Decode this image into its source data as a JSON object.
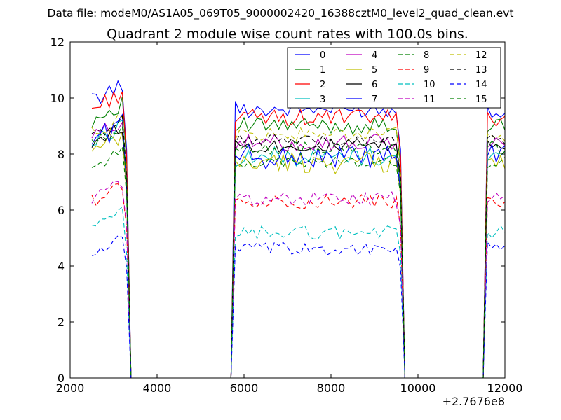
{
  "chart_data": {
    "type": "line",
    "suptitle": "Data file: modeM0/AS1A05_069T05_9000002420_16388cztM0_level2_quad_clean.evt",
    "title": "Quadrant 2 module wise count rates with 100.0s bins.",
    "xlabel": "",
    "ylabel": "",
    "x_offset_label": "+2.7676e8",
    "xlim": [
      2000,
      12000
    ],
    "ylim": [
      0,
      12
    ],
    "xticks": [
      "2000",
      "4000",
      "6000",
      "8000",
      "10000",
      "12000"
    ],
    "yticks": [
      "0",
      "2",
      "4",
      "6",
      "8",
      "10",
      "12"
    ],
    "legend_position": "top-right",
    "segments": [
      {
        "x_start": 2500,
        "x_end": 3200,
        "drop_to": 3400
      },
      {
        "x_start": 5800,
        "x_end": 9500,
        "drop_to": 9700
      },
      {
        "x_start": 11600,
        "x_end": 12000,
        "drop_to": null
      }
    ],
    "series": [
      {
        "name": "0",
        "color": "#0000ff",
        "dash": "solid",
        "level": 9.6,
        "amp": 0.3,
        "burst": 10.5
      },
      {
        "name": "1",
        "color": "#008000",
        "dash": "solid",
        "level": 9.0,
        "amp": 0.3,
        "burst": 9.8
      },
      {
        "name": "2",
        "color": "#ff0000",
        "dash": "solid",
        "level": 9.3,
        "amp": 0.3,
        "burst": 10.2
      },
      {
        "name": "3",
        "color": "#00bfbf",
        "dash": "solid",
        "level": 7.9,
        "amp": 0.35,
        "burst": 9.0
      },
      {
        "name": "4",
        "color": "#bf00bf",
        "dash": "solid",
        "level": 8.4,
        "amp": 0.3,
        "burst": 9.2
      },
      {
        "name": "5",
        "color": "#bfbf00",
        "dash": "solid",
        "level": 7.7,
        "amp": 0.4,
        "burst": 8.6
      },
      {
        "name": "6",
        "color": "#000000",
        "dash": "solid",
        "level": 8.3,
        "amp": 0.25,
        "burst": 9.0
      },
      {
        "name": "7",
        "color": "#0000ff",
        "dash": "solid",
        "level": 7.9,
        "amp": 0.45,
        "burst": 9.1
      },
      {
        "name": "8",
        "color": "#008000",
        "dash": "dashed",
        "level": 7.7,
        "amp": 0.2,
        "burst": 8.1
      },
      {
        "name": "9",
        "color": "#ff0000",
        "dash": "dashed",
        "level": 6.3,
        "amp": 0.25,
        "burst": 6.9
      },
      {
        "name": "10",
        "color": "#00bfbf",
        "dash": "dashed",
        "level": 5.2,
        "amp": 0.25,
        "burst": 5.9
      },
      {
        "name": "11",
        "color": "#bf00bf",
        "dash": "dashed",
        "level": 6.4,
        "amp": 0.25,
        "burst": 7.0
      },
      {
        "name": "12",
        "color": "#bfbf00",
        "dash": "dashed",
        "level": 8.7,
        "amp": 0.25,
        "burst": 9.3
      },
      {
        "name": "13",
        "color": "#000000",
        "dash": "dashed",
        "level": 8.5,
        "amp": 0.2,
        "burst": 9.2
      },
      {
        "name": "14",
        "color": "#0000ff",
        "dash": "dashed",
        "level": 4.6,
        "amp": 0.25,
        "burst": 5.0
      },
      {
        "name": "15",
        "color": "#008000",
        "dash": "dashed",
        "level": 8.2,
        "amp": 0.25,
        "burst": 8.9
      }
    ]
  }
}
